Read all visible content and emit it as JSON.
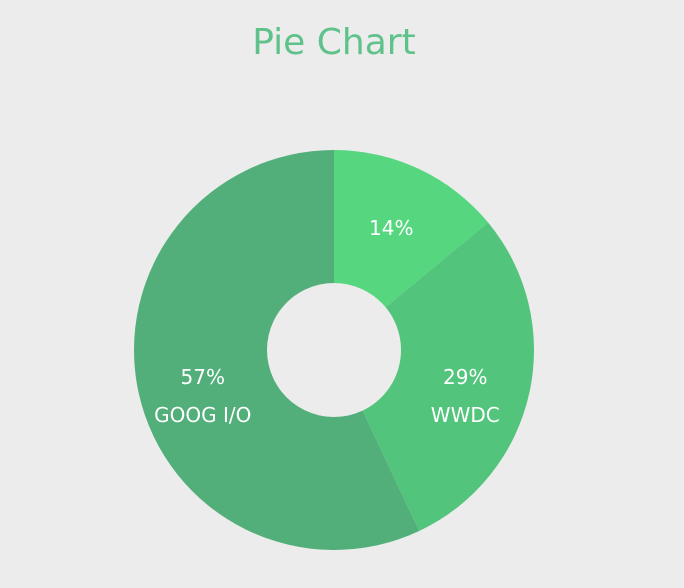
{
  "chart_data": {
    "type": "pie",
    "title": "Pie Chart",
    "donut": true,
    "slices": [
      {
        "name": "",
        "value": 14,
        "label": "14%",
        "color": "#56d67f"
      },
      {
        "name": "WWDC",
        "value": 29,
        "label": "29%",
        "color": "#52c47b"
      },
      {
        "name": "GOOG I/O",
        "value": 57,
        "label": "57%",
        "color": "#52af7a"
      }
    ]
  },
  "colors": {
    "background": "#ececec",
    "title": "#5ec28a",
    "label": "#ffffff"
  }
}
